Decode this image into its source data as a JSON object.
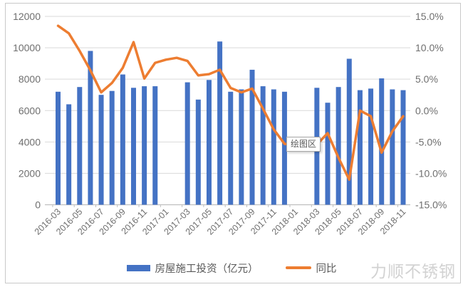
{
  "tooltip": {
    "label": "绘图区"
  },
  "watermark": "力顺不锈钢",
  "legend": {
    "items": [
      {
        "label": "房屋施工投资（亿元）",
        "color": "#4472C4",
        "swatch": "bar"
      },
      {
        "label": "同比",
        "color": "#ED7D31",
        "swatch": "line"
      }
    ]
  },
  "chart_data": {
    "type": "bar",
    "subtype": "bar+line combo, dual axis",
    "title": "",
    "xlabel": "",
    "ylabel_left": "房屋施工投资（亿元）",
    "ylabel_right": "同比",
    "grid": true,
    "legend_position": "bottom",
    "categories": [
      "2016-03",
      "2016-04",
      "2016-05",
      "2016-06",
      "2016-07",
      "2016-08",
      "2016-09",
      "2016-10",
      "2016-11",
      "2016-12",
      "2017-01",
      "2017-02",
      "2017-03",
      "2017-04",
      "2017-05",
      "2017-06",
      "2017-07",
      "2017-08",
      "2017-09",
      "2017-10",
      "2017-11",
      "2017-12",
      "2018-01",
      "2018-02",
      "2018-03",
      "2018-04",
      "2018-05",
      "2018-06",
      "2018-07",
      "2018-08",
      "2018-09",
      "2018-10",
      "2018-11"
    ],
    "x_tick_labels_shown": [
      "2016-03",
      "2016-05",
      "2016-07",
      "2016-09",
      "2016-11",
      "2017-01",
      "2017-03",
      "2017-05",
      "2017-07",
      "2017-09",
      "2017-11",
      "2018-01",
      "2018-03",
      "2018-05",
      "2018-07",
      "2018-09",
      "2018-11"
    ],
    "series": [
      {
        "name": "房屋施工投资（亿元）",
        "type": "bar",
        "axis": "left",
        "color": "#4472C4",
        "values": [
          7200,
          6400,
          7500,
          9800,
          7000,
          7250,
          8300,
          7450,
          7550,
          7550,
          null,
          null,
          7800,
          6700,
          7950,
          10400,
          7200,
          7350,
          8600,
          7550,
          7350,
          7200,
          null,
          null,
          7450,
          6500,
          7500,
          9300,
          7300,
          7400,
          8050,
          7350,
          7300
        ]
      },
      {
        "name": "同比",
        "type": "line",
        "axis": "right",
        "unit": "%",
        "color": "#ED7D31",
        "values": [
          13.5,
          12.3,
          9.5,
          6.4,
          2.9,
          4.4,
          6.8,
          10.9,
          5.1,
          7.6,
          8.1,
          8.4,
          7.9,
          5.6,
          5.8,
          6.5,
          3.6,
          2.9,
          3.5,
          0.3,
          -3.0,
          -5.3,
          -5.5,
          -5.5,
          -5.4,
          -3.6,
          -7.5,
          -11.0,
          0.0,
          -0.9,
          -6.7,
          -3.3,
          -0.9
        ]
      }
    ],
    "left_axis": {
      "min": 0,
      "max": 12000,
      "tick_labels": [
        "12000",
        "10000",
        "8000",
        "6000",
        "4000",
        "2000",
        "0"
      ]
    },
    "right_axis": {
      "min": -15,
      "max": 15,
      "tick_labels": [
        "15.0%",
        "10.0%",
        "5.0%",
        "0.0%",
        "-5.0%",
        "-10.0%",
        "-15.0%"
      ]
    },
    "colors": {
      "bar": "#4472C4",
      "line": "#ED7D31",
      "gridline": "#d9d9d9",
      "axis_line": "#bfbfbf",
      "tick_text": "#6f6f6f"
    }
  }
}
